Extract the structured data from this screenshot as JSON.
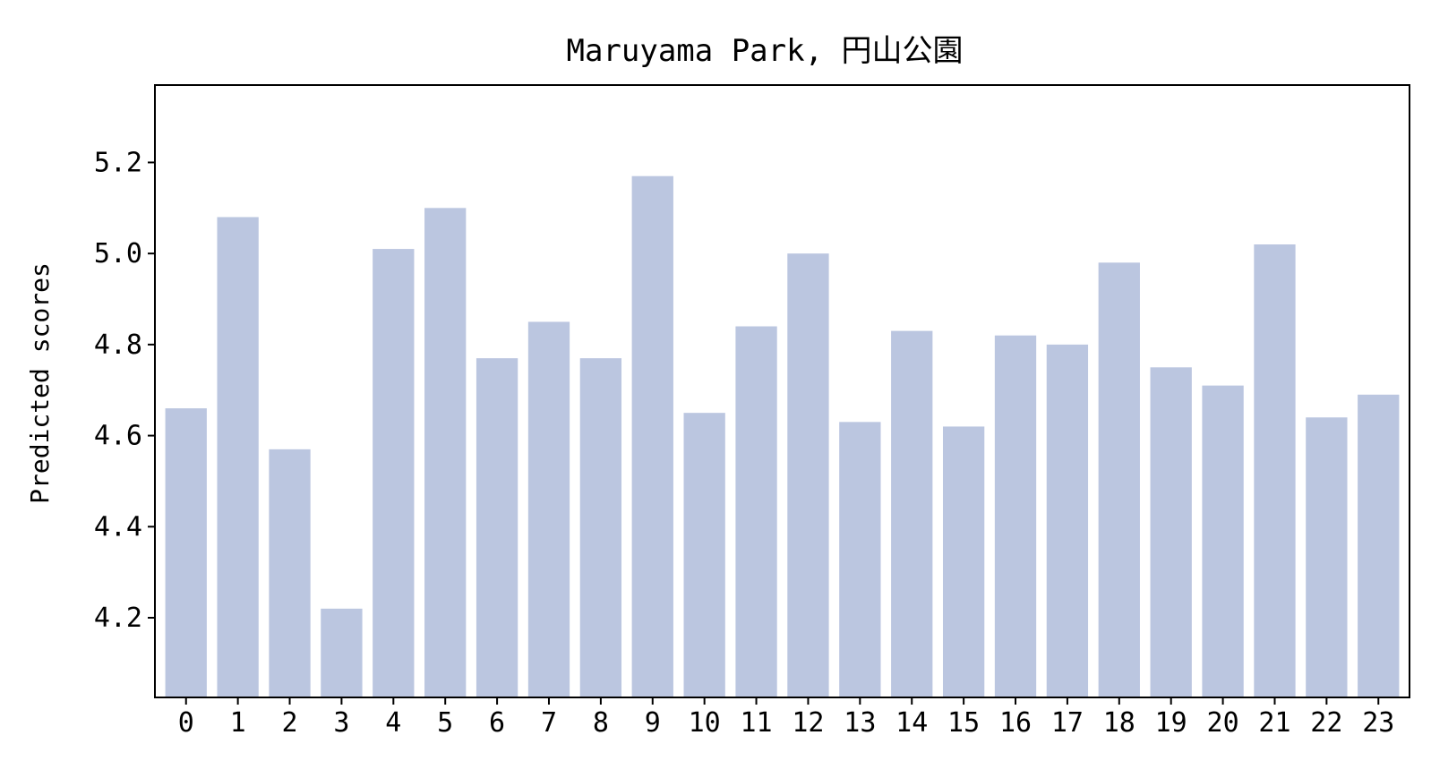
{
  "chart_data": {
    "type": "bar",
    "title": "Maruyama Park, 円山公園",
    "xlabel": "",
    "ylabel": "Predicted scores",
    "categories": [
      "0",
      "1",
      "2",
      "3",
      "4",
      "5",
      "6",
      "7",
      "8",
      "9",
      "10",
      "11",
      "12",
      "13",
      "14",
      "15",
      "16",
      "17",
      "18",
      "19",
      "20",
      "21",
      "22",
      "23"
    ],
    "values": [
      4.66,
      5.08,
      4.57,
      4.22,
      5.01,
      5.1,
      4.77,
      4.85,
      4.77,
      5.17,
      4.65,
      4.84,
      5.0,
      4.63,
      4.83,
      4.62,
      4.82,
      4.8,
      4.98,
      4.75,
      4.71,
      5.02,
      4.64,
      4.69
    ],
    "ylim": [
      4.025,
      5.37
    ],
    "yticks": [
      4.2,
      4.4,
      4.6,
      4.8,
      5.0,
      5.2
    ],
    "ytick_labels": [
      "4.2",
      "4.4",
      "4.6",
      "4.8",
      "5.0",
      "5.2"
    ],
    "bar_color": "#bbc6e0",
    "grid": false,
    "legend": "none"
  }
}
